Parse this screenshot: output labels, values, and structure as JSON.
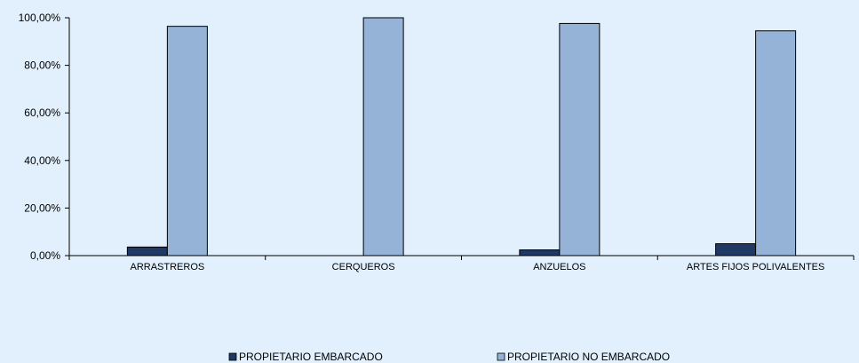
{
  "chart_data": {
    "type": "bar",
    "categories": [
      "ARRASTREROS",
      "CERQUEROS",
      "ANZUELOS",
      "ARTES FIJOS POLIVALENTES"
    ],
    "series": [
      {
        "name": "PROPIETARIO EMBARCADO",
        "values": [
          3.6,
          0,
          2.4,
          5.0
        ],
        "color": "#1f3864"
      },
      {
        "name": "PROPIETARIO NO EMBARCADO",
        "values": [
          96.4,
          100,
          97.6,
          94.5
        ],
        "color": "#95b3d7"
      }
    ],
    "y_ticks": [
      "0,00%",
      "20,00%",
      "40,00%",
      "60,00%",
      "80,00%",
      "100,00%"
    ],
    "ylim": [
      0,
      100
    ],
    "grid": false,
    "legend_position": "bottom",
    "background": "#e1f0fc"
  }
}
